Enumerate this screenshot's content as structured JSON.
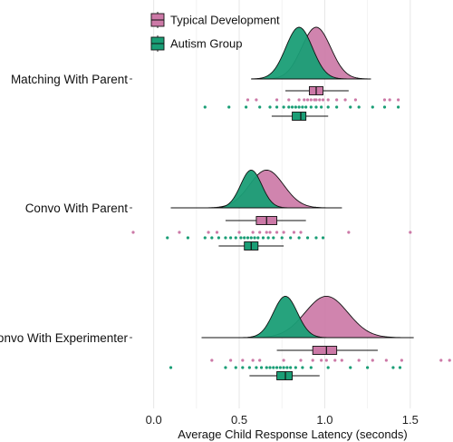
{
  "chart_data": {
    "type": "raincloud",
    "xlabel": "Average Child Response Latency (seconds)",
    "xlim": [
      -0.12,
      1.75
    ],
    "x_ticks": [
      0.0,
      0.5,
      1.0,
      1.5
    ],
    "x_tick_labels": [
      "0.0",
      "0.5",
      "1.0",
      "1.5"
    ],
    "grid": true,
    "legend_position": "top-center",
    "colors": {
      "Typical Development": "#cc79a7",
      "Autism Group": "#1a9e76"
    },
    "categories": [
      "Matching With Parent",
      "Convo With Parent",
      "Convo With Experimenter"
    ],
    "series": [
      {
        "name": "Typical Development",
        "groups": [
          {
            "category": "Matching With Parent",
            "density": {
              "mean": 0.95,
              "sd": 0.085,
              "min": 0.57,
              "max": 1.27,
              "peak": 1.0
            },
            "box": {
              "whisker_low": 0.77,
              "q1": 0.91,
              "median": 0.95,
              "q3": 0.99,
              "whisker_high": 1.14
            },
            "points": [
              0.55,
              0.6,
              0.72,
              0.79,
              0.85,
              0.88,
              0.9,
              0.92,
              0.94,
              0.95,
              0.97,
              0.99,
              1.02,
              1.07,
              1.12,
              1.18,
              1.35,
              1.38,
              1.43
            ]
          },
          {
            "category": "Convo With Parent",
            "density": {
              "mean": 0.66,
              "sd": 0.1,
              "min": 0.1,
              "max": 1.1,
              "peak": 0.8
            },
            "box": {
              "whisker_low": 0.42,
              "q1": 0.6,
              "median": 0.66,
              "q3": 0.72,
              "whisker_high": 0.89
            },
            "points": [
              -0.12,
              0.15,
              0.32,
              0.37,
              0.5,
              0.58,
              0.62,
              0.66,
              0.68,
              0.72,
              0.76,
              0.82,
              0.86,
              1.14,
              1.5
            ]
          },
          {
            "category": "Convo With Experimenter",
            "density": {
              "mean": 1.01,
              "sd": 0.125,
              "min": 0.28,
              "max": 1.52,
              "peak": 0.95
            },
            "box": {
              "whisker_low": 0.72,
              "q1": 0.93,
              "median": 1.01,
              "q3": 1.07,
              "whisker_high": 1.31
            },
            "points": [
              0.34,
              0.45,
              0.52,
              0.58,
              0.62,
              0.76,
              0.86,
              0.93,
              0.98,
              1.01,
              1.06,
              1.1,
              1.2,
              1.28,
              1.36,
              1.45,
              1.68,
              1.73
            ]
          }
        ]
      },
      {
        "name": "Autism Group",
        "groups": [
          {
            "category": "Matching With Parent",
            "density": {
              "mean": 0.85,
              "sd": 0.078,
              "min": 0.57,
              "max": 1.27,
              "peak": 1.0
            },
            "box": {
              "whisker_low": 0.69,
              "q1": 0.81,
              "median": 0.86,
              "q3": 0.89,
              "whisker_high": 1.02
            },
            "points": [
              0.3,
              0.44,
              0.54,
              0.62,
              0.68,
              0.72,
              0.76,
              0.79,
              0.81,
              0.83,
              0.85,
              0.87,
              0.89,
              0.92,
              0.95,
              0.98,
              1.02,
              1.07,
              1.15,
              1.2,
              1.28,
              1.35,
              1.43
            ]
          },
          {
            "category": "Convo With Parent",
            "density": {
              "mean": 0.57,
              "sd": 0.062,
              "min": 0.1,
              "max": 1.1,
              "peak": 0.8
            },
            "box": {
              "whisker_low": 0.38,
              "q1": 0.53,
              "median": 0.57,
              "q3": 0.61,
              "whisker_high": 0.76
            },
            "points": [
              0.08,
              0.2,
              0.3,
              0.34,
              0.38,
              0.42,
              0.45,
              0.48,
              0.51,
              0.53,
              0.55,
              0.57,
              0.59,
              0.61,
              0.64,
              0.67,
              0.7,
              0.75,
              0.8,
              0.85,
              0.9,
              0.95,
              0.99
            ]
          },
          {
            "category": "Convo With Experimenter",
            "density": {
              "mean": 0.77,
              "sd": 0.07,
              "min": 0.28,
              "max": 1.52,
              "peak": 0.95
            },
            "box": {
              "whisker_low": 0.56,
              "q1": 0.72,
              "median": 0.77,
              "q3": 0.81,
              "whisker_high": 0.97
            },
            "points": [
              0.1,
              0.42,
              0.48,
              0.52,
              0.56,
              0.6,
              0.63,
              0.66,
              0.68,
              0.7,
              0.72,
              0.74,
              0.76,
              0.78,
              0.8,
              0.83,
              0.87,
              0.92,
              1.02,
              1.15,
              1.25,
              1.4,
              1.44
            ]
          }
        ]
      }
    ]
  }
}
